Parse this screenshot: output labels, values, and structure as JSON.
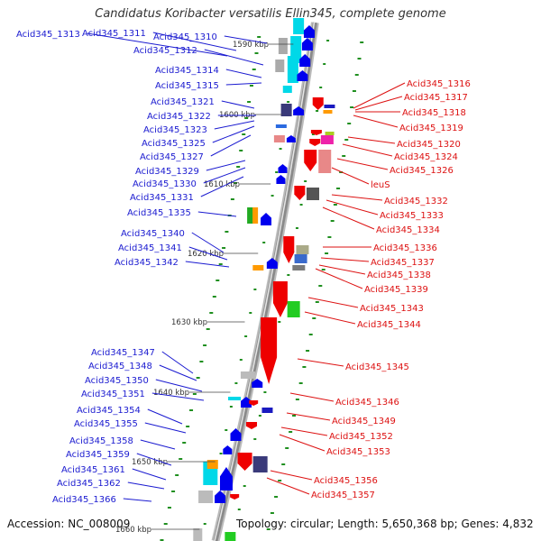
{
  "title": "Candidatus Koribacter versatilis Ellin345, complete genome",
  "accession": "Accession: NC_008009",
  "summary": "Topology: circular; Length: 5,650,368 bp; Genes: 4,832",
  "kbp_labels": [
    "1590 kbp",
    "1600 kbp",
    "1610 kbp",
    "1620 kbp",
    "1630 kbp",
    "1640 kbp",
    "1650 kbp",
    "1660 kbp"
  ],
  "left_genes": [
    "Acid345_1313",
    "Acid345_1311",
    "Acid345_1310",
    "Acid345_1312",
    "Acid345_1314",
    "Acid345_1315",
    "Acid345_1321",
    "Acid345_1322",
    "Acid345_1323",
    "Acid345_1325",
    "Acid345_1327",
    "Acid345_1329",
    "Acid345_1330",
    "Acid345_1331",
    "Acid345_1335",
    "Acid345_1340",
    "Acid345_1341",
    "Acid345_1342",
    "Acid345_1347",
    "Acid345_1348",
    "Acid345_1350",
    "Acid345_1351",
    "Acid345_1354",
    "Acid345_1355",
    "Acid345_1358",
    "Acid345_1359",
    "Acid345_1361",
    "Acid345_1362",
    "Acid345_1366"
  ],
  "right_genes": [
    "Acid345_1316",
    "Acid345_1317",
    "Acid345_1318",
    "Acid345_1319",
    "Acid345_1320",
    "Acid345_1324",
    "Acid345_1326",
    "leuS",
    "Acid345_1332",
    "Acid345_1333",
    "Acid345_1334",
    "Acid345_1336",
    "Acid345_1337",
    "Acid345_1338",
    "Acid345_1339",
    "Acid345_1343",
    "Acid345_1344",
    "Acid345_1345",
    "Acid345_1346",
    "Acid345_1349",
    "Acid345_1352",
    "Acid345_1353",
    "Acid345_1356",
    "Acid345_1357"
  ],
  "colors": {
    "left_label": "#1a1ad0",
    "right_label": "#dd1111",
    "backbone": "#999999",
    "tick": "#1f8f1f",
    "forward_gene": "#0000ee",
    "reverse_gene": "#ee0000"
  }
}
